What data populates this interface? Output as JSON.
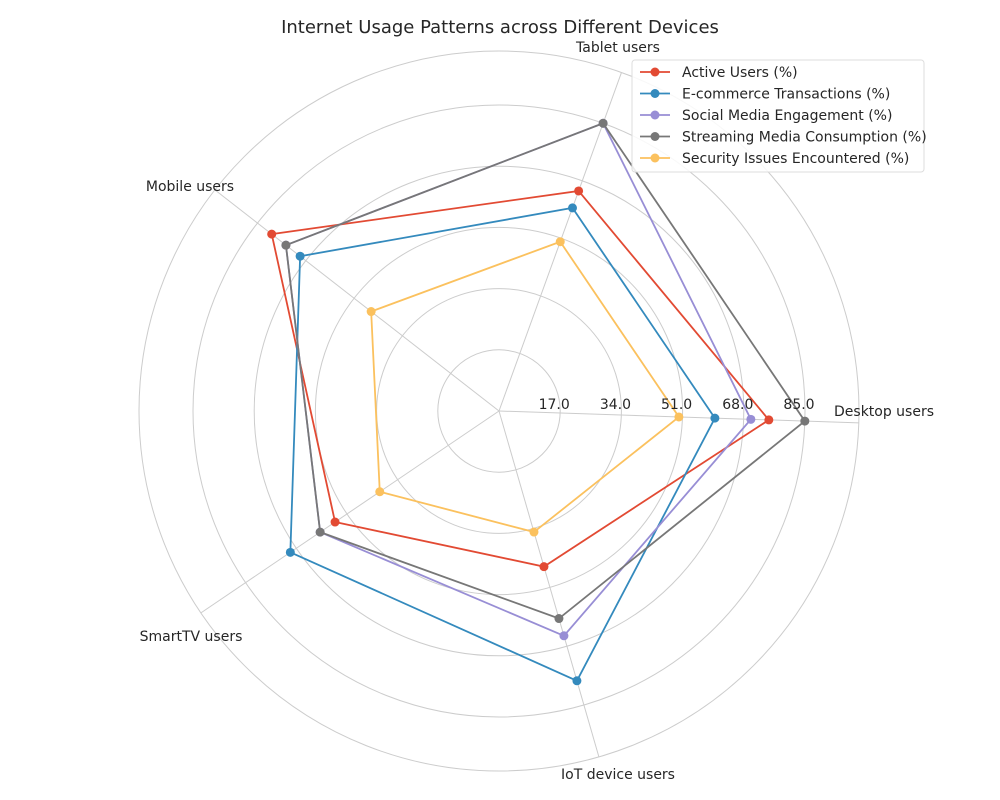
{
  "chart_data": {
    "type": "radar",
    "title": "Internet Usage Patterns across Different Devices",
    "categories": [
      "Desktop users",
      "Tablet users",
      "Mobile users",
      "SmartTV users",
      "IoT device users"
    ],
    "r_ticks": [
      17,
      34,
      51,
      68,
      85
    ],
    "r_tick_labels": [
      "17.0",
      "34.0",
      "51.0",
      "68.0",
      "85.0"
    ],
    "rmax": 100,
    "grid": true,
    "legend_position": "top-right",
    "series": [
      {
        "name": "Active Users (%)",
        "color": "#E24A33",
        "values": [
          75,
          65,
          80,
          55,
          45
        ]
      },
      {
        "name": "E-commerce Transactions (%)",
        "color": "#348ABD",
        "values": [
          60,
          60,
          70,
          70,
          78
        ]
      },
      {
        "name": "Social Media Engagement (%)",
        "color": "#988ED5",
        "values": [
          70,
          85,
          75,
          60,
          65
        ]
      },
      {
        "name": "Streaming Media Consumption (%)",
        "color": "#777777",
        "values": [
          85,
          85,
          75,
          60,
          60
        ]
      },
      {
        "name": "Security Issues Encountered (%)",
        "color": "#FBC15E",
        "values": [
          50,
          50,
          45,
          40,
          35
        ]
      }
    ]
  }
}
